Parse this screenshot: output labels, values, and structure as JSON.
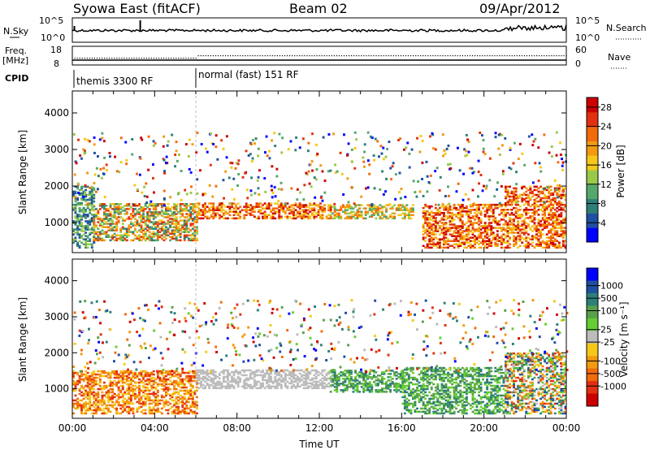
{
  "header": {
    "station": "Syowa East (fitACF)",
    "beam": "Beam 02",
    "date": "09/Apr/2012"
  },
  "panels": {
    "nsky": {
      "label": "N.Sky",
      "right_label": "N.Search",
      "left_ticks": [
        "10^5",
        "10^0"
      ],
      "right_ticks": [
        "10^5",
        "10^0"
      ]
    },
    "freq": {
      "label_line1": "Freq.",
      "label_line2": "[MHz]",
      "right_label": "Nave",
      "left_ticks": [
        "18",
        "8"
      ],
      "right_ticks": [
        "60",
        "0"
      ]
    },
    "cpid": {
      "label": "CPID",
      "modes": [
        "themis 3300 RF",
        "normal (fast) 151 RF"
      ],
      "mode_change_hour": 6
    }
  },
  "colors": {
    "power_scale": [
      "#0000ff",
      "#1f4fa0",
      "#2d7f78",
      "#55a86a",
      "#9ac94a",
      "#f5c818",
      "#f29a10",
      "#f36a0a",
      "#e23010",
      "#cc0000"
    ],
    "velocity_scale": [
      "#0000ff",
      "#1f4fa0",
      "#2d7f78",
      "#58a04a",
      "#66cc33",
      "#bcbcbc",
      "#f5c818",
      "#f29a10",
      "#f36a0a",
      "#e23010",
      "#cc0000"
    ]
  },
  "chart_data": [
    {
      "type": "heatmap",
      "name": "power",
      "xlabel": "",
      "ylabel": "Slant Range [km]",
      "xlim": [
        0,
        24
      ],
      "ylim": [
        180,
        4600
      ],
      "y_ticks": [
        "1000",
        "2000",
        "3000",
        "4000"
      ],
      "colorbar": {
        "label": "Power [dB]",
        "ticks": [
          "4",
          "8",
          "12",
          "16",
          "20",
          "24",
          "28"
        ],
        "range": [
          0,
          30
        ]
      },
      "echo_regions": [
        {
          "start_hour": 0,
          "end_hour": 1.0,
          "range_min": 300,
          "range_max": 2000,
          "level": "low"
        },
        {
          "start_hour": 1.0,
          "end_hour": 6.0,
          "range_min": 500,
          "range_max": 1500,
          "level": "mixed"
        },
        {
          "start_hour": 6.0,
          "end_hour": 12.5,
          "range_min": 1100,
          "range_max": 1550,
          "level": "high"
        },
        {
          "start_hour": 12.5,
          "end_hour": 16.5,
          "range_min": 1100,
          "range_max": 1500,
          "level": "medium"
        },
        {
          "start_hour": 17.0,
          "end_hour": 21.0,
          "range_min": 300,
          "range_max": 1500,
          "level": "high"
        },
        {
          "start_hour": 21.0,
          "end_hour": 24.0,
          "range_min": 300,
          "range_max": 2000,
          "level": "high"
        }
      ]
    },
    {
      "type": "heatmap",
      "name": "velocity",
      "xlabel": "Time UT",
      "ylabel": "Slant Range [km]",
      "xlim": [
        0,
        24
      ],
      "ylim": [
        180,
        4600
      ],
      "x_ticks": [
        "00:00",
        "04:00",
        "08:00",
        "12:00",
        "16:00",
        "20:00",
        "00:00"
      ],
      "y_ticks": [
        "1000",
        "2000",
        "3000",
        "4000"
      ],
      "colorbar": {
        "label": "Velocity [m s⁻¹]",
        "ticks": [
          "1000",
          "500",
          "100",
          "25",
          "-25",
          "-100",
          "-500",
          "-1000"
        ]
      },
      "echo_regions": [
        {
          "start_hour": 0,
          "end_hour": 6.0,
          "range_min": 300,
          "range_max": 1500,
          "velocity": "away"
        },
        {
          "start_hour": 6.0,
          "end_hour": 12.5,
          "range_min": 1000,
          "range_max": 1500,
          "velocity": "near zero"
        },
        {
          "start_hour": 12.5,
          "end_hour": 16.0,
          "range_min": 900,
          "range_max": 1500,
          "velocity": "toward"
        },
        {
          "start_hour": 16.0,
          "end_hour": 21.0,
          "range_min": 300,
          "range_max": 1600,
          "velocity": "toward"
        },
        {
          "start_hour": 21.0,
          "end_hour": 24.0,
          "range_min": 300,
          "range_max": 2000,
          "velocity": "mixed"
        }
      ]
    }
  ]
}
